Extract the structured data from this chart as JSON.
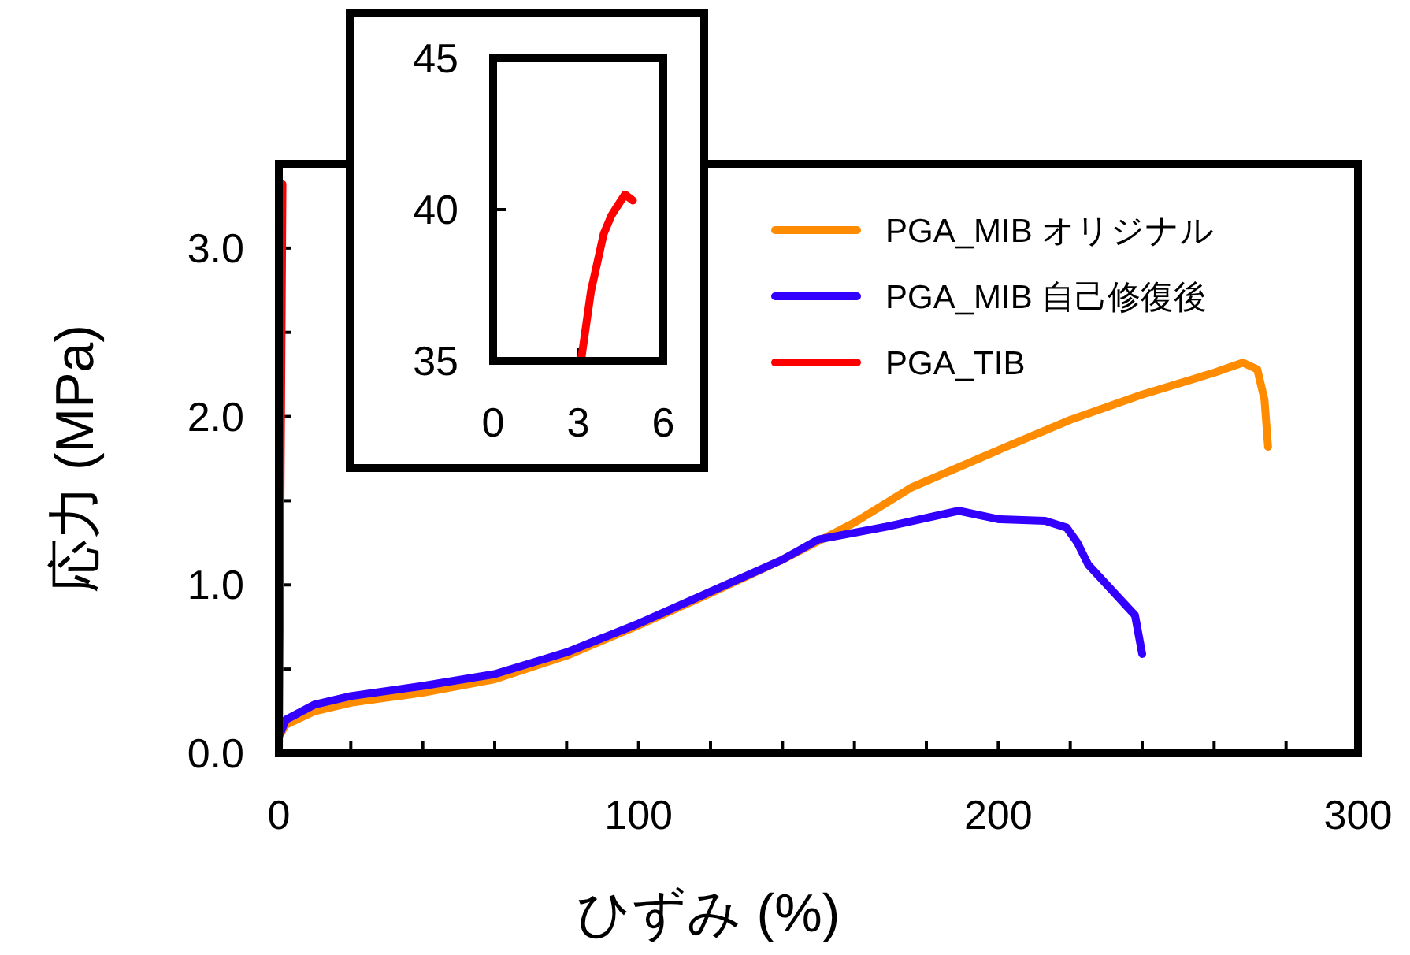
{
  "chart_data": [
    {
      "type": "line",
      "xlabel": "ひずみ (%)",
      "ylabel": "応力 (MPa)",
      "xlim": [
        0,
        300
      ],
      "ylim": [
        0,
        3.5
      ],
      "xticks": [
        0,
        {
          "value": 20,
          "label": null
        },
        {
          "value": 40,
          "label": null
        },
        {
          "value": 60,
          "label": null
        },
        {
          "value": 80,
          "label": null
        },
        100,
        {
          "value": 120,
          "label": null
        },
        {
          "value": 140,
          "label": null
        },
        {
          "value": 160,
          "label": null
        },
        {
          "value": 180,
          "label": null
        },
        200,
        {
          "value": 220,
          "label": null
        },
        {
          "value": 240,
          "label": null
        },
        {
          "value": 260,
          "label": null
        },
        {
          "value": 280,
          "label": null
        },
        300
      ],
      "yticks": [
        {
          "value": 0,
          "label": "0.0"
        },
        {
          "value": 0.5,
          "label": null
        },
        {
          "value": 1,
          "label": "1.0"
        },
        {
          "value": 1.5,
          "label": null
        },
        {
          "value": 2,
          "label": "2.0"
        },
        {
          "value": 2.5,
          "label": null
        },
        {
          "value": 3,
          "label": "3.0"
        },
        {
          "value": 3.5,
          "label": null
        }
      ],
      "legend": "top right",
      "series": [
        {
          "name": "PGA_MIB オリジナル",
          "color": "#ff8c00",
          "x": [
            0,
            2,
            10,
            20,
            40,
            60,
            80,
            100,
            120,
            140,
            160,
            176,
            200,
            220,
            240,
            260,
            268,
            272,
            274,
            275
          ],
          "values": [
            0.1,
            0.17,
            0.25,
            0.3,
            0.36,
            0.44,
            0.58,
            0.76,
            0.95,
            1.15,
            1.37,
            1.58,
            1.8,
            1.98,
            2.13,
            2.26,
            2.32,
            2.28,
            2.1,
            1.82
          ]
        },
        {
          "name": "PGA_MIB 自己修復後",
          "color": "#3300ff",
          "x": [
            0,
            2,
            10,
            20,
            40,
            60,
            80,
            100,
            120,
            140,
            150,
            170,
            189,
            200,
            213,
            219,
            222,
            225,
            238,
            240
          ],
          "values": [
            0.1,
            0.2,
            0.29,
            0.34,
            0.4,
            0.47,
            0.6,
            0.77,
            0.96,
            1.15,
            1.27,
            1.35,
            1.44,
            1.39,
            1.38,
            1.34,
            1.25,
            1.12,
            0.82,
            0.59
          ]
        },
        {
          "name": "PGA_TIB",
          "color": "#ff0000",
          "x": [
            0,
            1
          ],
          "values": [
            0,
            3.38
          ]
        }
      ]
    },
    {
      "type": "line",
      "xlim": [
        0,
        6
      ],
      "ylim": [
        35,
        45
      ],
      "xticks": [
        0,
        3,
        6
      ],
      "yticks": [
        35,
        40,
        45
      ],
      "series": [
        {
          "color": "#ff0000",
          "x": [
            3.1,
            3.45,
            3.9,
            4.17,
            4.37,
            4.65,
            4.93
          ],
          "values": [
            35,
            37.3,
            39.2,
            39.8,
            40.1,
            40.5,
            40.3
          ]
        }
      ]
    }
  ]
}
